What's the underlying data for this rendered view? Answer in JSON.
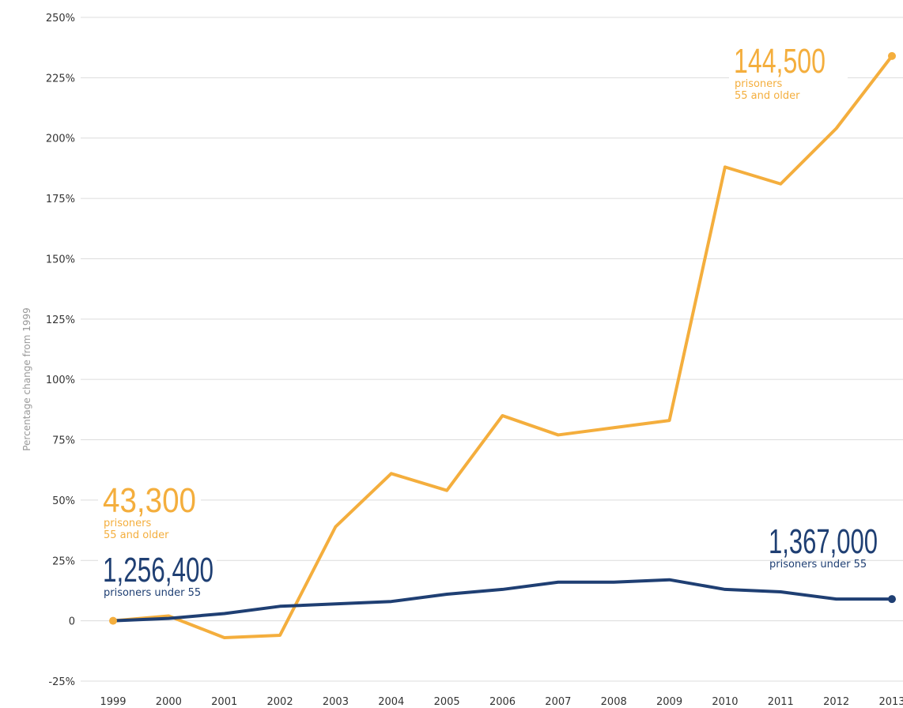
{
  "chart_data": {
    "type": "line",
    "y_label": "Percentage change from 1999",
    "x": [
      1999,
      2000,
      2001,
      2002,
      2003,
      2004,
      2005,
      2006,
      2007,
      2008,
      2009,
      2010,
      2011,
      2012,
      2013
    ],
    "series": [
      {
        "name": "prisoners 55 and older",
        "color": "#f4ae3d",
        "values": [
          0,
          2,
          -7,
          -6,
          39,
          61,
          54,
          85,
          77,
          80,
          83,
          188,
          181,
          204,
          234
        ]
      },
      {
        "name": "prisoners under 55",
        "color": "#1f3f73",
        "values": [
          0,
          1,
          3,
          6,
          7,
          8,
          11,
          13,
          16,
          16,
          17,
          13,
          12,
          9,
          9
        ]
      }
    ],
    "annotations": [
      {
        "series": 0,
        "value": "43,300",
        "lines": [
          "prisoners",
          "55 and older"
        ]
      },
      {
        "series": 1,
        "value": "1,256,400",
        "lines": [
          "prisoners under 55"
        ]
      },
      {
        "series": 0,
        "value": "144,500",
        "lines": [
          "prisoners",
          "55 and older"
        ]
      },
      {
        "series": 1,
        "value": "1,367,000",
        "lines": [
          "prisoners under 55"
        ]
      }
    ],
    "ylim": [
      -25,
      250
    ],
    "yticks": [
      {
        "value": -25,
        "label": "-25%"
      },
      0,
      {
        "value": 25,
        "label": "25%"
      },
      {
        "value": 50,
        "label": "50%"
      },
      {
        "value": 75,
        "label": "75%"
      },
      {
        "value": 100,
        "label": "100%"
      },
      {
        "value": 125,
        "label": "125%"
      },
      {
        "value": 150,
        "label": "150%"
      },
      {
        "value": 175,
        "label": "175%"
      },
      {
        "value": 200,
        "label": "200%"
      },
      {
        "value": 225,
        "label": "225%"
      },
      {
        "value": 250,
        "label": "250%"
      }
    ],
    "grid": true
  }
}
